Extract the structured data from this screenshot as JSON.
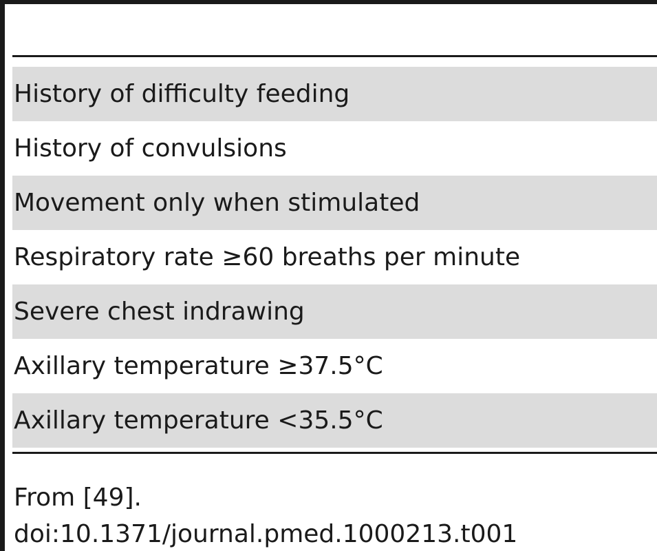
{
  "table": {
    "rows": [
      "History of difficulty feeding",
      "History of convulsions",
      "Movement only when stimulated",
      "Respiratory rate ≥60 breaths per minute",
      "Severe chest indrawing",
      "Axillary temperature ≥37.5°C",
      "Axillary temperature <35.5°C"
    ]
  },
  "footnote": {
    "source": "From [49].",
    "doi": "doi:10.1371/journal.pmed.1000213.t001"
  }
}
